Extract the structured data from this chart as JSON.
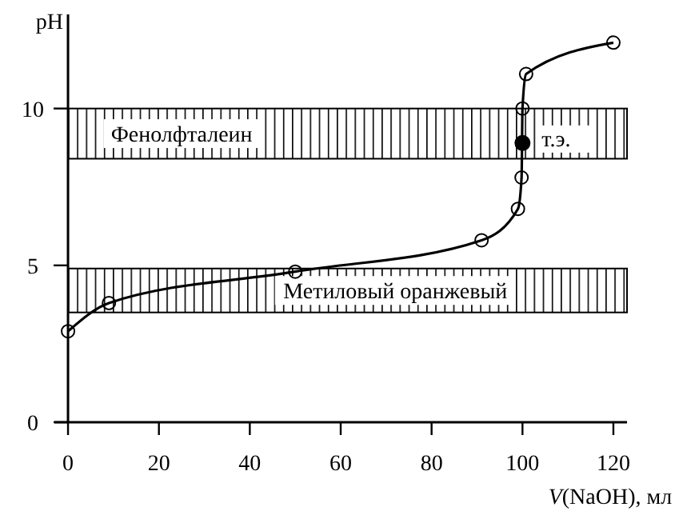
{
  "chart_data": {
    "type": "line",
    "xlabel": "V(NaOH), мл",
    "ylabel": "pH",
    "xlim": [
      -3,
      123
    ],
    "ylim": [
      0,
      13
    ],
    "xticks": [
      0,
      20,
      40,
      60,
      80,
      100,
      120
    ],
    "yticks": [
      0,
      5,
      10
    ],
    "grid": false,
    "marker": "circle",
    "line_style": "solid",
    "series": [
      {
        "type": "line",
        "color": "#000000",
        "x": [
          0,
          9,
          50,
          91,
          99,
          99.8,
          100,
          100.8,
          120
        ],
        "values": [
          2.9,
          3.8,
          4.8,
          5.8,
          6.8,
          7.8,
          10.0,
          11.1,
          12.1
        ]
      },
      {
        "type": "scatter",
        "color": "#000000",
        "x": [
          100
        ],
        "values": [
          8.9
        ]
      }
    ],
    "bands": [
      {
        "axis": "y",
        "from": 8.4,
        "to": 10,
        "label": "Фенолфталеин",
        "color": "#000000"
      },
      {
        "axis": "y",
        "from": 3.5,
        "to": 4.9,
        "label": "Метиловый оранжевый",
        "color": "#000000"
      }
    ],
    "annotations": [
      {
        "text": "т.э.",
        "x": 100,
        "y": 8.9
      }
    ]
  }
}
